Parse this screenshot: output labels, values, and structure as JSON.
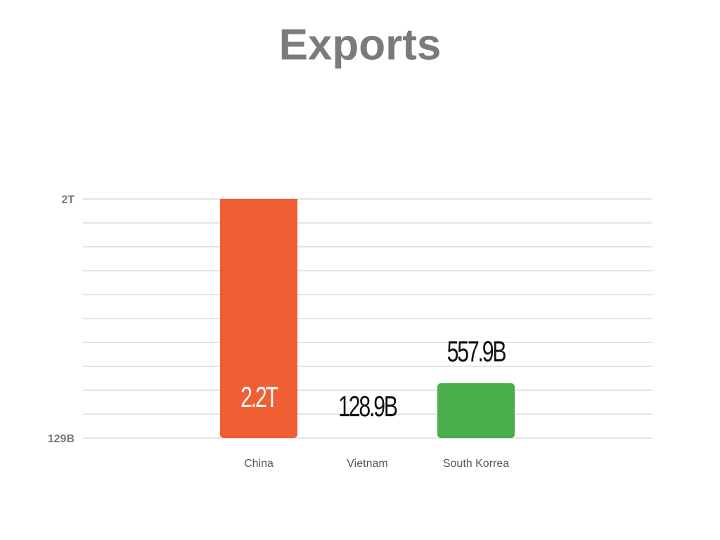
{
  "chart_data": {
    "type": "bar",
    "title": "Exports",
    "categories": [
      "China",
      "Vietnam",
      "South Korrea"
    ],
    "values": [
      2200000000000,
      128900000000,
      557900000000
    ],
    "value_labels": [
      "2.2T",
      "128.9B",
      "557.9B"
    ],
    "colors": [
      "#f05f33",
      null,
      "#4aae4c"
    ],
    "ylim": [
      129000000000,
      2000000000000
    ],
    "yticks": [
      {
        "value": 129000000000,
        "label": "129B"
      },
      {
        "value": 2000000000000,
        "label": "2T"
      }
    ],
    "grid": true
  }
}
